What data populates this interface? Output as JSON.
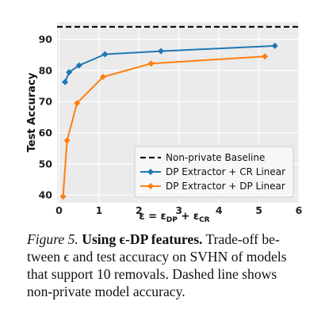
{
  "chart_data": {
    "type": "line",
    "xlabel": "ε = ε",
    "xlabel_sub1": "DP",
    "xlabel_plus": " + ε",
    "xlabel_sub2": "CR",
    "ylabel": "Test Accuracy",
    "xlim": [
      -0.05,
      6
    ],
    "ylim": [
      37.5,
      95.5
    ],
    "xticks": [
      0,
      1,
      2,
      3,
      4,
      5,
      6
    ],
    "yticks": [
      40,
      50,
      60,
      70,
      80,
      90
    ],
    "grid": true,
    "legend_position": "lower-right",
    "baseline": {
      "name": "Non-private Baseline",
      "y": 94,
      "color": "#111111",
      "style": "dashed"
    },
    "series": [
      {
        "name": "DP Extractor + CR Linear",
        "color": "#1f77b4",
        "x": [
          0.15,
          0.25,
          0.5,
          1.15,
          2.55,
          5.4
        ],
        "y": [
          76.3,
          79.4,
          81.6,
          85.2,
          86.2,
          87.9
        ]
      },
      {
        "name": "DP Extractor + DP Linear",
        "color": "#ff7f0e",
        "x": [
          0.1,
          0.2,
          0.45,
          1.1,
          2.3,
          5.15
        ],
        "y": [
          39.5,
          57.5,
          69.5,
          77.9,
          82.2,
          84.5
        ]
      }
    ]
  },
  "caption": {
    "label": "Figure 5.",
    "title": "Using ϵ-DP features.",
    "line1_rest": " Trade-off be-",
    "line2": "tween ϵ and test accuracy on SVHN of models",
    "line3": "that support 10 removals. Dashed line shows",
    "line4": "non-private model accuracy."
  }
}
